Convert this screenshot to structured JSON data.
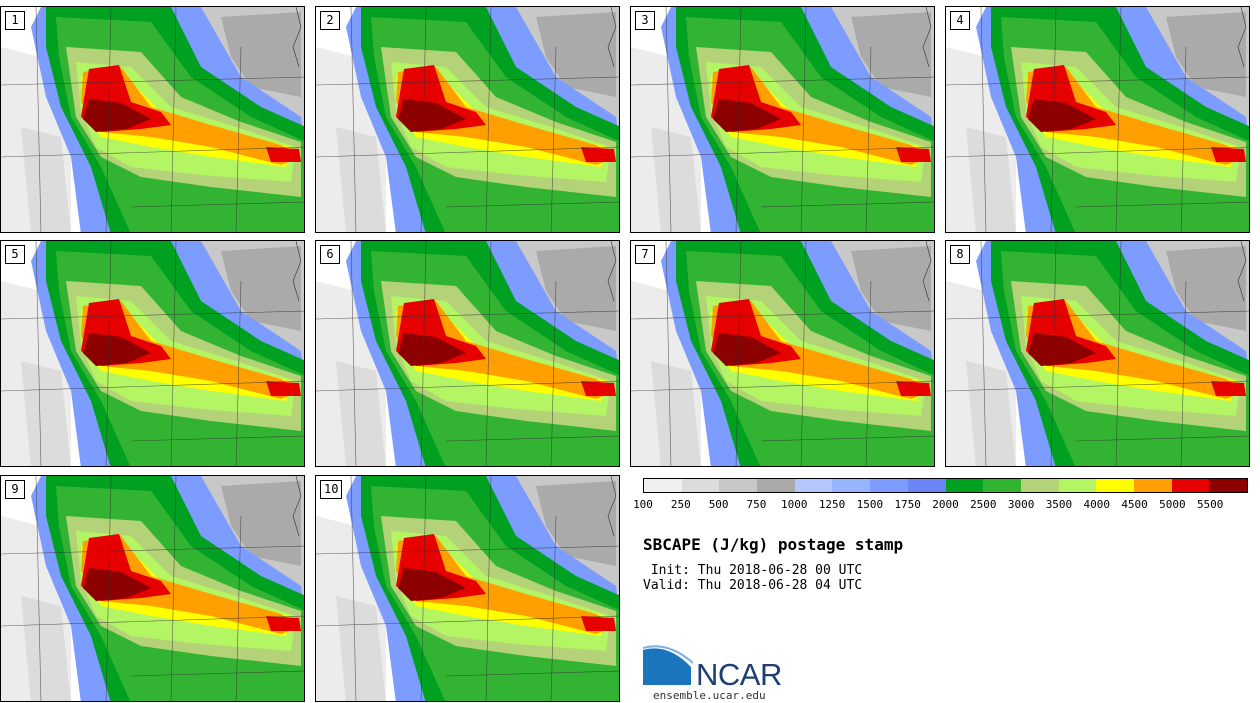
{
  "panels": [
    {
      "label": "1"
    },
    {
      "label": "2"
    },
    {
      "label": "3"
    },
    {
      "label": "4"
    },
    {
      "label": "5"
    },
    {
      "label": "6"
    },
    {
      "label": "7"
    },
    {
      "label": "8"
    },
    {
      "label": "9"
    },
    {
      "label": "10"
    }
  ],
  "legend": {
    "colors": [
      "#f0f0f0",
      "#dcdcdc",
      "#c8c8c8",
      "#aaaaaa",
      "#b4c8ff",
      "#96b4ff",
      "#7c9cff",
      "#6a86f5",
      "#00a020",
      "#32b432",
      "#b4d278",
      "#b4f564",
      "#ffff00",
      "#ffa000",
      "#e60000",
      "#8c0000"
    ],
    "ticks": [
      "100",
      "250",
      "500",
      "750",
      "1000",
      "1250",
      "1500",
      "1750",
      "2000",
      "2500",
      "3000",
      "3500",
      "4000",
      "4500",
      "5000",
      "5500"
    ]
  },
  "title": "SBCAPE (J/kg) postage stamp",
  "init": " Init: Thu 2018-06-28 00 UTC",
  "valid": "Valid: Thu 2018-06-28 04 UTC",
  "logo": {
    "text": "NCAR",
    "site": "ensemble.ucar.edu"
  }
}
